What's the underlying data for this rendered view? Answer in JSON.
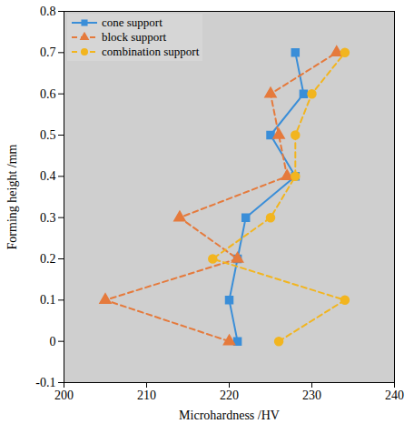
{
  "chart_data": {
    "type": "line",
    "x_label": "Microhardness /HV",
    "y_label": "Forming height /mm",
    "xlim": [
      200,
      240
    ],
    "xticks": [
      200,
      210,
      220,
      230,
      240
    ],
    "ylim": [
      -0.1,
      0.8
    ],
    "yticks": [
      -0.1,
      0,
      0.1,
      0.2,
      0.3,
      0.4,
      0.5,
      0.6,
      0.7,
      0.8
    ],
    "legend": "upper left",
    "series": [
      {
        "name": "cone support",
        "color": "#3a8ed8",
        "marker": "square",
        "line_style": "solid",
        "x": [
          221,
          220,
          221,
          222,
          228,
          225,
          229,
          228
        ],
        "values": [
          0,
          0.1,
          0.2,
          0.3,
          0.4,
          0.5,
          0.6,
          0.7
        ]
      },
      {
        "name": "block support",
        "color": "#e57a3c",
        "marker": "triangle",
        "line_style": "dashed",
        "x": [
          220,
          205,
          221,
          214,
          227,
          226,
          225,
          233
        ],
        "values": [
          0,
          0.1,
          0.2,
          0.3,
          0.4,
          0.5,
          0.6,
          0.7
        ]
      },
      {
        "name": "combination support",
        "color": "#f2b51f",
        "marker": "circle",
        "line_style": "dashed",
        "x": [
          226,
          234,
          218,
          225,
          228,
          228,
          230,
          234
        ],
        "values": [
          0,
          0.1,
          0.2,
          0.3,
          0.4,
          0.5,
          0.6,
          0.7
        ]
      }
    ]
  }
}
